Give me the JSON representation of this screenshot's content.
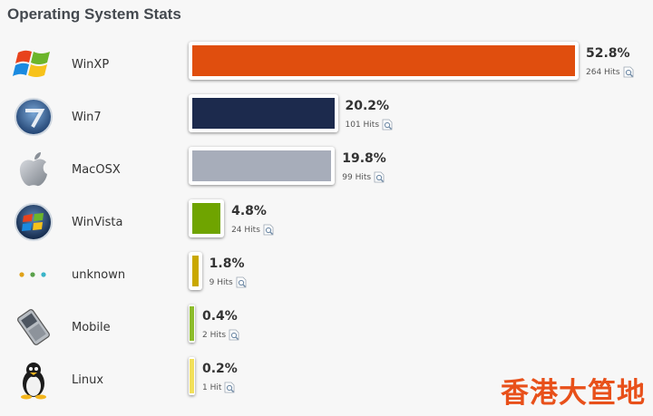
{
  "page": {
    "title": "Operating System Stats"
  },
  "chart_data": {
    "type": "bar",
    "orientation": "horizontal",
    "title": "Operating System Stats",
    "categories": [
      "WinXP",
      "Win7",
      "MacOSX",
      "WinVista",
      "unknown",
      "Mobile",
      "Linux"
    ],
    "values": [
      52.8,
      20.2,
      19.8,
      4.8,
      1.8,
      0.4,
      0.2
    ],
    "value_labels": [
      "52.8%",
      "20.2%",
      "19.8%",
      "4.8%",
      "1.8%",
      "0.4%",
      "0.2%"
    ],
    "hits": [
      264,
      101,
      99,
      24,
      9,
      2,
      1
    ],
    "hits_labels": [
      "264 Hits",
      "101 Hits",
      "99 Hits",
      "24 Hits",
      "9 Hits",
      "2 Hits",
      "1 Hit"
    ],
    "colors": [
      "#e04e0e",
      "#1c2a4d",
      "#a7adba",
      "#6fa400",
      "#c9a800",
      "#8cbc2a",
      "#f2e05a"
    ],
    "icons": [
      "winxp-icon",
      "win7-icon",
      "macosx-icon",
      "winvista-icon",
      "unknown-icon",
      "mobile-icon",
      "linux-icon"
    ],
    "units": "%",
    "grid": false,
    "legend": "none"
  },
  "watermark": "香港大笪地"
}
